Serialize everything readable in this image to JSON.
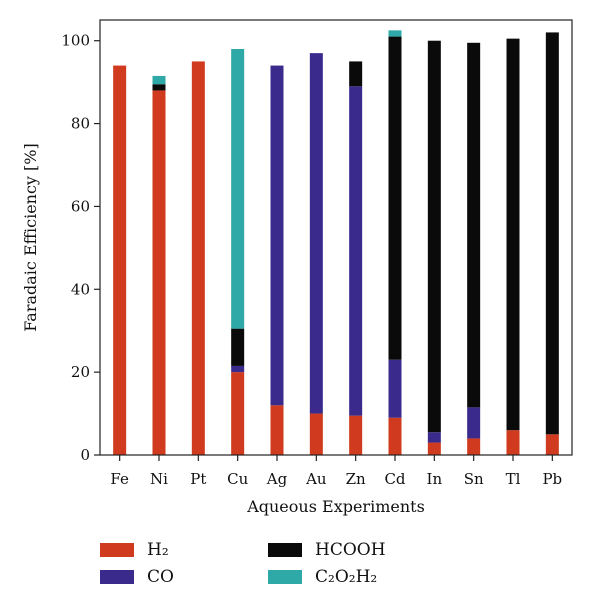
{
  "chart_data": {
    "type": "bar",
    "stacked": true,
    "title": "",
    "xlabel": "Aqueous Experiments",
    "ylabel": "Faradaic Efficiency [%]",
    "ylim": [
      0,
      105
    ],
    "yticks": [
      0,
      20,
      40,
      60,
      80,
      100
    ],
    "grid": false,
    "legend_position": "bottom",
    "categories": [
      "Fe",
      "Ni",
      "Pt",
      "Cu",
      "Ag",
      "Au",
      "Zn",
      "Cd",
      "In",
      "Sn",
      "Tl",
      "Pb"
    ],
    "series": [
      {
        "name": "H₂",
        "color": "#d03a1e",
        "values": [
          94,
          88,
          95,
          20,
          12,
          10,
          9.5,
          9,
          3,
          4,
          6,
          5
        ]
      },
      {
        "name": "CO",
        "color": "#3a2a8c",
        "values": [
          0,
          0,
          0,
          1.5,
          82,
          87,
          79.5,
          14,
          2.5,
          7.5,
          0,
          0
        ]
      },
      {
        "name": "HCOOH",
        "color": "#0a0a0a",
        "values": [
          0,
          1.5,
          0,
          9,
          0,
          0,
          6,
          78,
          94.5,
          88,
          94.5,
          97
        ]
      },
      {
        "name": "C₂O₂H₂",
        "color": "#2ea9a8",
        "values": [
          0,
          2,
          0,
          67.5,
          0,
          0,
          0,
          1.5,
          0,
          0,
          0,
          0
        ]
      }
    ]
  },
  "legend": {
    "h2": {
      "label": "H₂",
      "color": "#d03a1e"
    },
    "co": {
      "label": "CO",
      "color": "#3a2a8c"
    },
    "hcooh": {
      "label": "HCOOH",
      "color": "#0a0a0a"
    },
    "c2o2h2": {
      "label": "C₂O₂H₂",
      "color": "#2ea9a8"
    }
  }
}
